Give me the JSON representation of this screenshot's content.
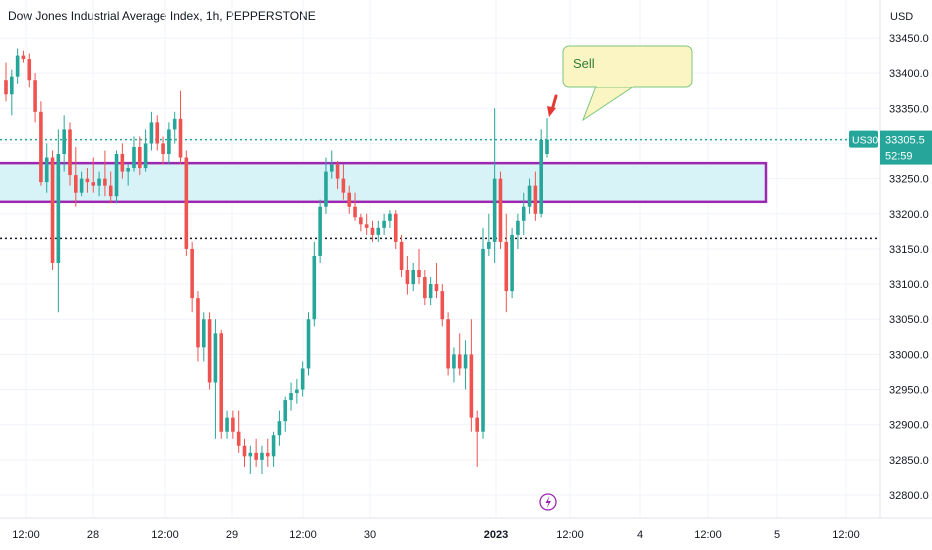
{
  "header": {
    "title": "Dow Jones Industrial Average Index, 1h, PEPPERSTONE",
    "currency": "USD"
  },
  "colors": {
    "up": "#26a69a",
    "down": "#ef5350",
    "zone_fill": "#d8f3f8",
    "zone_border": "#9c27b0",
    "last_price_line": "#26a69a",
    "black_line": "#131722",
    "callout_fill": "#fbf5c4",
    "callout_border": "#7bc67b",
    "arrow": "#e53935",
    "lightning": "#9c27b0"
  },
  "annotation": {
    "callout_text": "Sell"
  },
  "price_badge": {
    "symbol": "US30",
    "price": "33305.5",
    "countdown": "52:59"
  },
  "chart_data": {
    "type": "candlestick",
    "y_axis": {
      "ticks": [
        33450.0,
        33400.0,
        33350.0,
        33300.0,
        33250.0,
        33200.0,
        33150.0,
        33100.0,
        33050.0,
        33000.0,
        32950.0,
        32900.0,
        32850.0,
        32800.0
      ],
      "ylim": [
        32775,
        33475
      ]
    },
    "x_axis": {
      "tick_labels": [
        "12:00",
        "28",
        "12:00",
        "29",
        "12:00",
        "30",
        "2023",
        "12:00",
        "4",
        "12:00",
        "5",
        "12:00"
      ],
      "bold_labels": [
        "2023"
      ]
    },
    "horizontal_lines": [
      {
        "value": 33305.5,
        "style": "dotted",
        "role": "last-price"
      },
      {
        "value": 33165,
        "style": "dotted",
        "role": "level"
      }
    ],
    "zone": {
      "low": 33217,
      "high": 33272
    },
    "candles": [
      [
        33390,
        33415,
        33360,
        33370
      ],
      [
        33370,
        33405,
        33340,
        33395
      ],
      [
        33395,
        33435,
        33385,
        33425
      ],
      [
        33425,
        33432,
        33415,
        33420
      ],
      [
        33420,
        33428,
        33380,
        33390
      ],
      [
        33390,
        33400,
        33330,
        33345
      ],
      [
        33345,
        33360,
        33240,
        33245
      ],
      [
        33245,
        33300,
        33230,
        33280
      ],
      [
        33280,
        33290,
        33120,
        33130
      ],
      [
        33130,
        33320,
        33060,
        33285
      ],
      [
        33285,
        33340,
        33260,
        33320
      ],
      [
        33320,
        33330,
        33240,
        33255
      ],
      [
        33255,
        33295,
        33210,
        33230
      ],
      [
        33230,
        33260,
        33225,
        33250
      ],
      [
        33250,
        33265,
        33230,
        33245
      ],
      [
        33245,
        33280,
        33230,
        33240
      ],
      [
        33240,
        33260,
        33225,
        33250
      ],
      [
        33250,
        33290,
        33225,
        33240
      ],
      [
        33240,
        33260,
        33215,
        33225
      ],
      [
        33225,
        33290,
        33215,
        33285
      ],
      [
        33285,
        33300,
        33250,
        33260
      ],
      [
        33260,
        33270,
        33240,
        33265
      ],
      [
        33265,
        33310,
        33260,
        33295
      ],
      [
        33295,
        33310,
        33255,
        33265
      ],
      [
        33265,
        33320,
        33260,
        33300
      ],
      [
        33300,
        33345,
        33290,
        33330
      ],
      [
        33330,
        33340,
        33290,
        33300
      ],
      [
        33300,
        33310,
        33270,
        33285
      ],
      [
        33285,
        33330,
        33270,
        33320
      ],
      [
        33320,
        33345,
        33300,
        33335
      ],
      [
        33335,
        33375,
        33270,
        33280
      ],
      [
        33280,
        33290,
        33140,
        33150
      ],
      [
        33150,
        33160,
        33060,
        33080
      ],
      [
        33080,
        33090,
        32990,
        33010
      ],
      [
        33010,
        33060,
        32990,
        33050
      ],
      [
        33050,
        33060,
        32950,
        32960
      ],
      [
        32960,
        33050,
        32880,
        33030
      ],
      [
        33030,
        33035,
        32880,
        32890
      ],
      [
        32890,
        32920,
        32880,
        32910
      ],
      [
        32910,
        32920,
        32880,
        32890
      ],
      [
        32890,
        32920,
        32860,
        32870
      ],
      [
        32870,
        32880,
        32840,
        32855
      ],
      [
        32855,
        32870,
        32830,
        32860
      ],
      [
        32860,
        32880,
        32840,
        32850
      ],
      [
        32850,
        32870,
        32830,
        32860
      ],
      [
        32860,
        32880,
        32840,
        32855
      ],
      [
        32855,
        32890,
        32840,
        32885
      ],
      [
        32885,
        32920,
        32870,
        32905
      ],
      [
        32905,
        32940,
        32890,
        32935
      ],
      [
        32935,
        32960,
        32920,
        32945
      ],
      [
        32945,
        32965,
        32930,
        32950
      ],
      [
        32950,
        32990,
        32940,
        32980
      ],
      [
        32980,
        33060,
        32970,
        33050
      ],
      [
        33050,
        33160,
        33040,
        33140
      ],
      [
        33140,
        33220,
        33130,
        33210
      ],
      [
        33210,
        33280,
        33200,
        33260
      ],
      [
        33260,
        33290,
        33250,
        33270
      ],
      [
        33270,
        33275,
        33235,
        33250
      ],
      [
        33250,
        33270,
        33220,
        33230
      ],
      [
        33230,
        33240,
        33200,
        33210
      ],
      [
        33210,
        33230,
        33190,
        33195
      ],
      [
        33195,
        33200,
        33175,
        33185
      ],
      [
        33185,
        33200,
        33170,
        33180
      ],
      [
        33180,
        33190,
        33160,
        33170
      ],
      [
        33170,
        33190,
        33160,
        33180
      ],
      [
        33180,
        33200,
        33170,
        33190
      ],
      [
        33190,
        33205,
        33180,
        33200
      ],
      [
        33200,
        33205,
        33150,
        33160
      ],
      [
        33160,
        33170,
        33110,
        33120
      ],
      [
        33120,
        33140,
        33085,
        33100
      ],
      [
        33100,
        33130,
        33090,
        33120
      ],
      [
        33120,
        33150,
        33100,
        33110
      ],
      [
        33110,
        33120,
        33070,
        33080
      ],
      [
        33080,
        33110,
        33070,
        33100
      ],
      [
        33100,
        33130,
        33080,
        33090
      ],
      [
        33090,
        33100,
        33040,
        33050
      ],
      [
        33050,
        33060,
        32970,
        32980
      ],
      [
        32980,
        33010,
        32960,
        33000
      ],
      [
        33000,
        33030,
        32970,
        32980
      ],
      [
        32980,
        33020,
        32950,
        33000
      ],
      [
        33000,
        33050,
        32890,
        32910
      ],
      [
        32910,
        32920,
        32840,
        32890
      ],
      [
        32890,
        33180,
        32880,
        33150
      ],
      [
        33150,
        33200,
        33140,
        33160
      ],
      [
        33160,
        33350,
        33130,
        33250
      ],
      [
        33250,
        33260,
        33150,
        33160
      ],
      [
        33160,
        33200,
        33060,
        33090
      ],
      [
        33090,
        33180,
        33080,
        33170
      ],
      [
        33170,
        33200,
        33150,
        33190
      ],
      [
        33190,
        33230,
        33170,
        33210
      ],
      [
        33210,
        33250,
        33200,
        33240
      ],
      [
        33240,
        33260,
        33190,
        33200
      ],
      [
        33200,
        33320,
        33195,
        33305
      ],
      [
        33285,
        33336,
        33280,
        33305.5
      ]
    ]
  }
}
